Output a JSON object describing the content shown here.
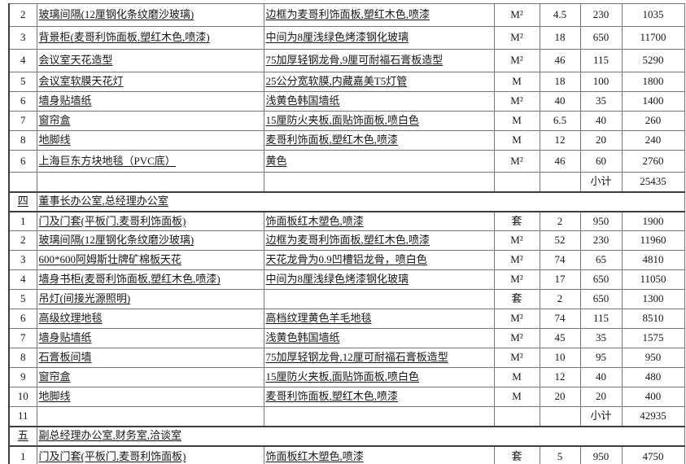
{
  "document": {
    "kind": "renovation-quotation-table",
    "background_color": "#ffffff",
    "grid_color": "#777777",
    "section_line_color": "#3d3d3d",
    "text_color": "#161616"
  },
  "labels": {
    "subtotal": "小计"
  },
  "columns": {
    "num_width": 34,
    "item_width": 279,
    "desc_width": 283,
    "unit_width": 56,
    "qty_width": 50,
    "price_width": 51,
    "total_width": 77
  },
  "rows": [
    {
      "type": "item",
      "num": "2",
      "item": "玻璃间隔(12厘钢化条纹磨沙玻璃)",
      "desc": "边框为麦哥利饰面板,塑红木色,喷漆",
      "unit": "M²",
      "qty": "4.5",
      "price": "230",
      "total": "1035"
    },
    {
      "type": "item",
      "num": "3",
      "item": "背景柜(麦哥利饰面板,塑红木色,喷漆)",
      "desc": "中间为8厘浅绿色烤漆钢化玻璃",
      "unit": "M²",
      "qty": "18",
      "price": "650",
      "total": "11700"
    },
    {
      "type": "item",
      "num": "4",
      "item": "会议室天花造型",
      "desc": "75加厚轻钢龙骨,9厘可耐福石膏板造型",
      "unit": "M²",
      "qty": "46",
      "price": "115",
      "total": "5290"
    },
    {
      "type": "item",
      "num": "5",
      "item": "会议室软膜天花灯",
      "desc": "25公分宽软膜,内藏嘉美T5灯管",
      "unit": "M",
      "qty": "18",
      "price": "100",
      "total": "1800"
    },
    {
      "type": "item",
      "num": "6",
      "item": "墙身贴墙纸",
      "desc": "浅黄色韩国墙纸",
      "unit": "M²",
      "qty": "40",
      "price": "35",
      "total": "1400"
    },
    {
      "type": "item",
      "num": "7",
      "item": "窗帘盒",
      "desc": "15厘防火夹板,面贴饰面板,喷白色",
      "unit": "M",
      "qty": "6.5",
      "price": "40",
      "total": "260"
    },
    {
      "type": "item",
      "num": "8",
      "item": "地脚线",
      "desc": "麦哥利饰面板,塑红木色,喷漆",
      "unit": "M",
      "qty": "12",
      "price": "20",
      "total": "240"
    },
    {
      "type": "item",
      "num": "6",
      "item": "上海巨东方块地毯（PVC底）",
      "desc": "黄色",
      "unit": "M²",
      "qty": "46",
      "price": "60",
      "total": "2760"
    },
    {
      "type": "subtotal",
      "num": "",
      "item": "",
      "desc": "",
      "unit": "",
      "qty": "",
      "total": "25435"
    },
    {
      "type": "section",
      "num": "四",
      "title": "董事长办公室,总经理办公室"
    },
    {
      "type": "item",
      "num": "1",
      "item": "门及门套(平板门,麦哥利饰面板)",
      "desc": "饰面板红木塑色,喷漆",
      "unit": "套",
      "qty": "2",
      "price": "950",
      "total": "1900"
    },
    {
      "type": "item",
      "num": "2",
      "item": "玻璃间隔(12厘钢化条纹磨沙玻璃)",
      "desc": "边框为麦哥利饰面板,塑红木色,喷漆",
      "unit": "M²",
      "qty": "52",
      "price": "230",
      "total": "11960"
    },
    {
      "type": "item",
      "num": "3",
      "item": "600*600阿姆斯壮牌矿棉板天花",
      "desc": "天花龙骨为0.9凹槽铝龙骨，喷白色",
      "unit": "M²",
      "qty": "74",
      "price": "65",
      "total": "4810"
    },
    {
      "type": "item",
      "num": "4",
      "item": "墙身书柜(麦哥利饰面板,塑红木色,喷漆)",
      "desc": "中间为8厘浅绿色烤漆钢化玻璃",
      "unit": "M²",
      "qty": "17",
      "price": "650",
      "total": "11050"
    },
    {
      "type": "item",
      "num": "5",
      "item": "吊灯(间接光源照明)",
      "desc": "",
      "unit": "套",
      "qty": "2",
      "price": "650",
      "total": "1300"
    },
    {
      "type": "item",
      "num": "6",
      "item": "高级纹理地毯",
      "desc": "高档纹理黄色羊毛地毯",
      "unit": "M²",
      "qty": "74",
      "price": "115",
      "total": "8510"
    },
    {
      "type": "item",
      "num": "7",
      "item": "墙身贴墙纸",
      "desc": "浅黄色韩国墙纸",
      "unit": "M²",
      "qty": "45",
      "price": "35",
      "total": "1575"
    },
    {
      "type": "item",
      "num": "8",
      "item": "石膏板间墙",
      "desc": "75加厚轻钢龙骨,12厘可耐福石膏板造型",
      "unit": "M²",
      "qty": "10",
      "price": "95",
      "total": "950"
    },
    {
      "type": "item",
      "num": "9",
      "item": "窗帘盒",
      "desc": "15厘防火夹板,面贴饰面板,喷白色",
      "unit": "M",
      "qty": "12",
      "price": "40",
      "total": "480"
    },
    {
      "type": "item",
      "num": "10",
      "item": "地脚线",
      "desc": "麦哥利饰面板,塑红木色,喷漆",
      "unit": "M",
      "qty": "20",
      "price": "20",
      "total": "400"
    },
    {
      "type": "subtotal",
      "num": "11",
      "item": "",
      "desc": "",
      "unit": "",
      "qty": "",
      "total": "42935"
    },
    {
      "type": "section",
      "num": "五",
      "title": "副总经理办公室,财务室,洽谈室"
    },
    {
      "type": "item",
      "num": "1",
      "item": "门及门套(平板门,麦哥利饰面板)",
      "desc": "饰面板红木塑色,喷漆",
      "unit": "套",
      "qty": "5",
      "price": "950",
      "total": "4750"
    }
  ]
}
